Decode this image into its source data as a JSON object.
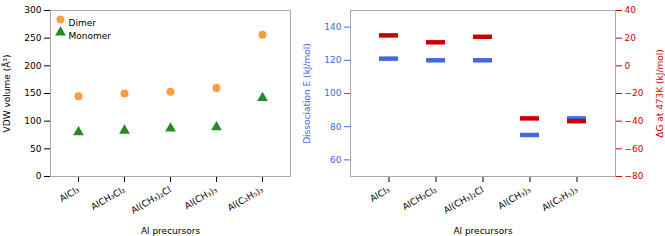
{
  "chart_data": [
    {
      "type": "scatter",
      "categories": [
        "AlCl₃",
        "AlCH₃Cl₂",
        "Al(CH₃)₂Cl",
        "Al(CH₃)₃",
        "Al(C₂H₅)₃"
      ],
      "series": [
        {
          "name": "Dimer",
          "color": "#F4A040",
          "marker": "circle",
          "values": [
            145,
            150,
            153,
            160,
            256
          ]
        },
        {
          "name": "Monomer",
          "color": "#228B22",
          "marker": "triangle",
          "values": [
            80,
            83,
            87,
            89,
            142
          ]
        }
      ],
      "xlabel": "Al precursors",
      "ylabel": "VDW volume (Å³)",
      "ylim": [
        0,
        300
      ],
      "yticks": [
        0,
        50,
        100,
        150,
        200,
        250,
        300
      ],
      "legend": "upper left"
    },
    {
      "type": "scatter",
      "categories": [
        "AlCl₃",
        "AlCH₃Cl₂",
        "Al(CH₃)₂Cl",
        "Al(CH₃)₃",
        "Al(C₂H₅)₃"
      ],
      "series": [
        {
          "color": "#4169E1",
          "marker": "tick",
          "values": [
            121,
            120,
            120,
            75,
            85
          ]
        },
        {
          "color": "#CC0000",
          "marker": "tick",
          "axis": "y2",
          "values": [
            22,
            17,
            21,
            -38,
            -40
          ]
        }
      ],
      "xlabel": "Al precursors",
      "ylabel": "Dissociation E (kJ/mol)",
      "y2label": "ΔG at 473K (kJ/mol)",
      "ylim": [
        50,
        150
      ],
      "yticks": [
        60,
        80,
        100,
        120,
        140
      ],
      "y2lim": [
        -80,
        40
      ],
      "y2ticks": [
        -80,
        -60,
        -40,
        -20,
        0,
        20,
        40
      ]
    }
  ]
}
